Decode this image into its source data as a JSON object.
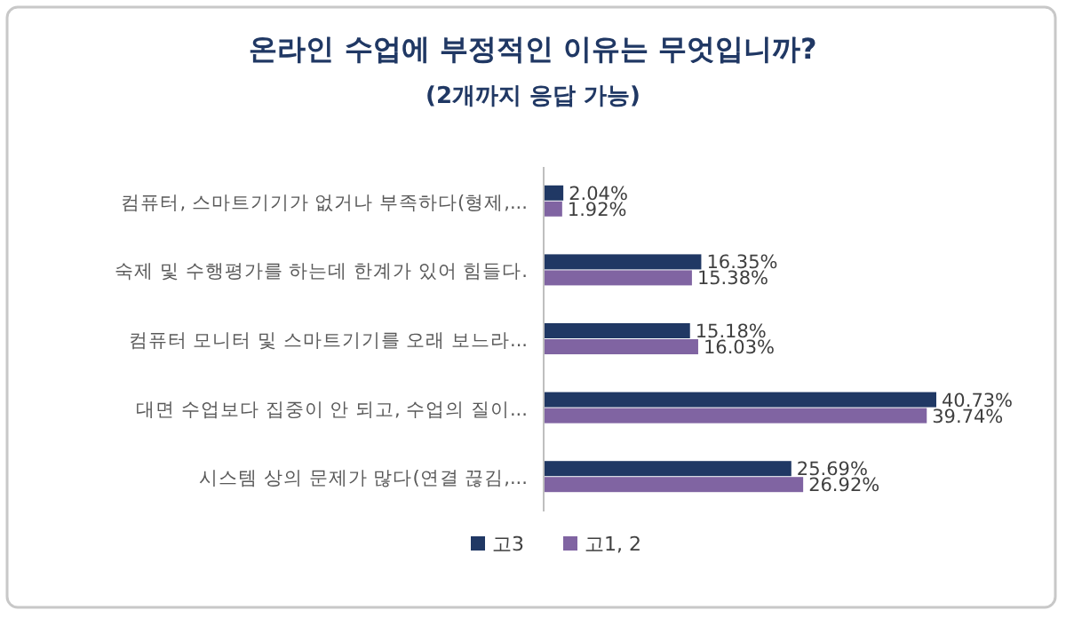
{
  "chart_data": {
    "type": "bar",
    "orientation": "horizontal",
    "title": "온라인 수업에 부정적인 이유는 무엇입니까?",
    "subtitle": "(2개까지 응답 가능)",
    "categories": [
      "컴퓨터, 스마트기기가 없거나 부족하다(형제,...",
      "숙제 및 수행평가를 하는데 한계가 있어 힘들다.",
      "컴퓨터 모니터 및 스마트기기를 오래 보느라...",
      "대면 수업보다 집중이 안 되고, 수업의 질이...",
      "시스템 상의 문제가 많다(연결 끊김,..."
    ],
    "series": [
      {
        "name": "고3",
        "color": "#203864",
        "values": [
          2.04,
          16.35,
          15.18,
          40.73,
          25.69
        ],
        "value_labels": [
          "2.04%",
          "16.35%",
          "15.18%",
          "40.73%",
          "25.69%"
        ]
      },
      {
        "name": "고1, 2",
        "color": "#8064a2",
        "values": [
          1.92,
          15.38,
          16.03,
          39.74,
          26.92
        ],
        "value_labels": [
          "1.92%",
          "15.38%",
          "16.03%",
          "39.74%",
          "26.92%"
        ]
      }
    ],
    "legend": "bottom"
  }
}
